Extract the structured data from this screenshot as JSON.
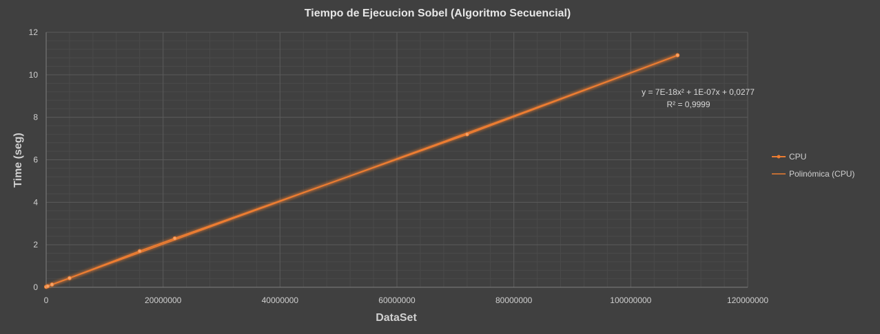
{
  "chart_data": {
    "type": "scatter",
    "title": "Tiempo de Ejecucion Sobel (Algoritmo Secuencial)",
    "xlabel": "DataSet",
    "ylabel": "Time (seg)",
    "xlim": [
      0,
      120000000
    ],
    "ylim": [
      0,
      12
    ],
    "x_ticks": [
      0,
      20000000,
      40000000,
      60000000,
      80000000,
      100000000,
      120000000
    ],
    "x_tick_labels": [
      "0",
      "20000000",
      "40000000",
      "60000000",
      "80000000",
      "100000000",
      "120000000"
    ],
    "y_ticks": [
      0,
      2,
      4,
      6,
      8,
      10,
      12
    ],
    "y_tick_labels": [
      "0",
      "2",
      "4",
      "6",
      "8",
      "10",
      "12"
    ],
    "grid": true,
    "legend_position": "right",
    "series": [
      {
        "name": "CPU",
        "color": "#ed7d31",
        "x": [
          0,
          250000,
          1000000,
          4000000,
          16000000,
          22000000,
          72000000,
          108000000
        ],
        "y": [
          0.02,
          0.05,
          0.13,
          0.43,
          1.7,
          2.3,
          7.2,
          10.92
        ]
      }
    ],
    "trendline": {
      "name": "Polinómica (CPU)",
      "type": "polynomial",
      "color": "#ed7d31",
      "coefficients": {
        "a2": 7e-18,
        "a1": 1e-07,
        "a0": 0.0277
      },
      "equation": "y = 7E-18x² + 1E-07x + 0,0277",
      "r_squared": "R² = 0,9999"
    }
  }
}
